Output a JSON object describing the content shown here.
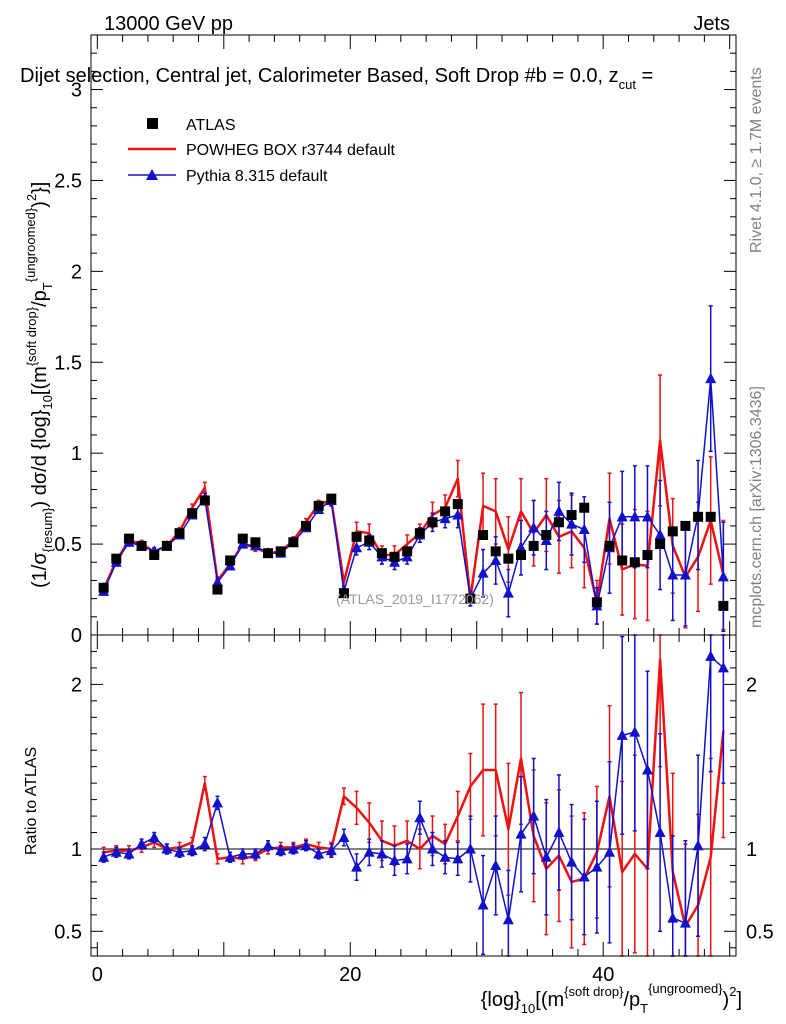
{
  "header": {
    "energy_label": "13000 GeV pp",
    "process_label": "Jets",
    "plot_title": "Dijet selection, Central jet, Calorimeter Based, Soft Drop #b = 0.0, z",
    "zcut_sub": "cut",
    "zcut_eq": " ="
  },
  "side_labels": {
    "rivet": "Rivet 4.1.0, ≥ 1.7M events",
    "mcplots": "mcplots.cern.ch [arXiv:1306.3436]"
  },
  "watermark": "(ATLAS_2019_I1772062)",
  "axes": {
    "ylabel_main": {
      "p1": "(1/σ",
      "sub1": "{resum}",
      "p2": ") dσ/d {log}",
      "sub2": "10",
      "p3": "[(m",
      "sup1": "{soft drop}",
      "p4": "/p",
      "sub3": "T",
      "sup2": "{ungroomed}",
      "p5": ")",
      "sup3": "2",
      "p6": "}]"
    },
    "ylabel_ratio": "Ratio to ATLAS",
    "xlabel": {
      "p1": "{log}",
      "sub1": "10",
      "p2": "[(m",
      "sup1": "{soft drop}",
      "p3": "/p",
      "sub2": "T",
      "sup2": "{ungroomed}",
      "p4": ")",
      "sup3": "2",
      "p5": "]"
    }
  },
  "legend": {
    "atlas": "ATLAS",
    "powheg": "POWHEG BOX r3744 default",
    "pythia": "Pythia 8.315 default"
  },
  "colors": {
    "data": "#000000",
    "powheg": "#ee1111",
    "pythia": "#1111cc",
    "reference": "#000000"
  },
  "chart_data": [
    {
      "type": "scatter",
      "name": "main",
      "xlim": [
        -0.5,
        50.5
      ],
      "ylim": [
        0,
        3.3
      ],
      "x_ticks": [
        0,
        20,
        40
      ],
      "y_ticks": [
        0,
        0.5,
        1,
        1.5,
        2,
        2.5,
        3
      ],
      "y_tick_labels": [
        "0",
        "0.5",
        "1",
        "1.5",
        "2",
        "2.5",
        "3"
      ],
      "x": [
        0.5,
        1.5,
        2.5,
        3.5,
        4.5,
        5.5,
        6.5,
        7.5,
        8.5,
        9.5,
        10.5,
        11.5,
        12.5,
        13.5,
        14.5,
        15.5,
        16.5,
        17.5,
        18.5,
        19.5,
        20.5,
        21.5,
        22.5,
        23.5,
        24.5,
        25.5,
        26.5,
        27.5,
        28.5,
        29.5,
        30.5,
        31.5,
        32.5,
        33.5,
        34.5,
        35.5,
        36.5,
        37.5,
        38.5,
        39.5,
        40.5,
        41.5,
        42.5,
        43.5,
        44.5,
        45.5,
        46.5,
        47.5,
        48.5,
        49.5
      ],
      "series": [
        {
          "name": "ATLAS",
          "values": [
            0.26,
            0.42,
            0.53,
            0.49,
            0.44,
            0.49,
            0.56,
            0.67,
            0.74,
            0.25,
            0.41,
            0.53,
            0.51,
            0.45,
            0.46,
            0.51,
            0.6,
            0.71,
            0.75,
            0.23,
            0.54,
            0.52,
            0.45,
            0.43,
            0.46,
            0.56,
            0.62,
            0.68,
            0.72,
            0.2,
            0.55,
            0.46,
            0.42,
            0.44,
            0.49,
            0.55,
            0.62,
            0.66,
            0.7,
            0.18,
            0.49,
            0.41,
            0.4,
            0.44,
            0.5,
            0.57,
            0.6,
            0.65,
            0.65,
            0.16
          ]
        },
        {
          "name": "POWHEG BOX r3744 default",
          "values": [
            0.25,
            0.41,
            0.52,
            0.5,
            0.46,
            0.49,
            0.57,
            0.7,
            0.81,
            0.3,
            0.39,
            0.5,
            0.48,
            0.45,
            0.46,
            0.52,
            0.62,
            0.72,
            0.74,
            0.29,
            0.57,
            0.56,
            0.44,
            0.44,
            0.5,
            0.56,
            0.66,
            0.7,
            0.86,
            0.2,
            0.71,
            0.68,
            0.47,
            0.68,
            0.56,
            0.66,
            0.54,
            0.57,
            0.48,
            0.18,
            0.64,
            0.36,
            0.39,
            0.38,
            1.07,
            0.49,
            0.32,
            0.43,
            0.63,
            0.33
          ],
          "err": [
            0.02,
            0.02,
            0.02,
            0.02,
            0.02,
            0.02,
            0.02,
            0.02,
            0.03,
            0.02,
            0.02,
            0.02,
            0.02,
            0.02,
            0.02,
            0.02,
            0.02,
            0.02,
            0.03,
            0.03,
            0.05,
            0.05,
            0.05,
            0.05,
            0.05,
            0.05,
            0.07,
            0.07,
            0.1,
            0.04,
            0.18,
            0.18,
            0.18,
            0.18,
            0.18,
            0.2,
            0.2,
            0.2,
            0.22,
            0.12,
            0.25,
            0.25,
            0.3,
            0.3,
            0.36,
            0.26,
            0.28,
            0.3,
            0.35,
            0.3
          ]
        },
        {
          "name": "Pythia 8.315 default",
          "values": [
            0.24,
            0.4,
            0.51,
            0.49,
            0.46,
            0.49,
            0.55,
            0.66,
            0.75,
            0.29,
            0.38,
            0.5,
            0.49,
            0.45,
            0.45,
            0.51,
            0.59,
            0.69,
            0.74,
            0.24,
            0.48,
            0.51,
            0.43,
            0.4,
            0.43,
            0.55,
            0.62,
            0.64,
            0.66,
            0.2,
            0.34,
            0.41,
            0.23,
            0.48,
            0.59,
            0.52,
            0.68,
            0.61,
            0.58,
            0.16,
            0.48,
            0.65,
            0.65,
            0.65,
            0.55,
            0.33,
            0.33,
            0.66,
            1.41,
            0.32
          ],
          "err": [
            0.02,
            0.02,
            0.02,
            0.02,
            0.02,
            0.02,
            0.02,
            0.02,
            0.03,
            0.02,
            0.02,
            0.02,
            0.02,
            0.02,
            0.02,
            0.02,
            0.02,
            0.02,
            0.03,
            0.03,
            0.04,
            0.04,
            0.04,
            0.04,
            0.04,
            0.04,
            0.05,
            0.05,
            0.07,
            0.04,
            0.13,
            0.13,
            0.13,
            0.15,
            0.15,
            0.16,
            0.16,
            0.17,
            0.18,
            0.1,
            0.25,
            0.25,
            0.28,
            0.28,
            0.3,
            0.25,
            0.28,
            0.3,
            0.4,
            0.3
          ]
        }
      ]
    },
    {
      "type": "scatter",
      "name": "ratio",
      "xlim": [
        -0.5,
        50.5
      ],
      "ylim": [
        0.35,
        2.3
      ],
      "x_ticks": [
        0,
        20,
        40
      ],
      "x_tick_labels": [
        "0",
        "20",
        "40"
      ],
      "y_ticks": [
        0.5,
        1,
        2
      ],
      "y_tick_labels": [
        "0.5",
        "1",
        "2"
      ],
      "reference_line": 1,
      "x": [
        0.5,
        1.5,
        2.5,
        3.5,
        4.5,
        5.5,
        6.5,
        7.5,
        8.5,
        9.5,
        10.5,
        11.5,
        12.5,
        13.5,
        14.5,
        15.5,
        16.5,
        17.5,
        18.5,
        19.5,
        20.5,
        21.5,
        22.5,
        23.5,
        24.5,
        25.5,
        26.5,
        27.5,
        28.5,
        29.5,
        30.5,
        31.5,
        32.5,
        33.5,
        34.5,
        35.5,
        36.5,
        37.5,
        38.5,
        39.5,
        40.5,
        41.5,
        42.5,
        43.5,
        44.5,
        45.5,
        46.5,
        47.5,
        48.5,
        49.5
      ],
      "series": [
        {
          "name": "POWHEG BOX r3744 default",
          "values": [
            0.98,
            0.99,
            0.99,
            1.01,
            1.04,
            1.0,
            1.01,
            1.04,
            1.4,
            0.94,
            0.95,
            0.94,
            0.96,
            1.0,
            1.01,
            1.01,
            1.03,
            1.01,
            1.0,
            1.32,
            1.25,
            1.16,
            1.05,
            1.02,
            1.05,
            1.0,
            1.08,
            1.03,
            1.2,
            1.38,
            1.48,
            1.48,
            1.12,
            1.55,
            1.08,
            0.88,
            0.96,
            0.8,
            0.82,
            0.98,
            1.32,
            0.86,
            0.97,
            0.88,
            2.15,
            0.86,
            0.53,
            0.66,
            0.95,
            1.72
          ],
          "err": [
            0.03,
            0.03,
            0.03,
            0.03,
            0.03,
            0.03,
            0.03,
            0.03,
            0.04,
            0.03,
            0.03,
            0.03,
            0.03,
            0.03,
            0.03,
            0.03,
            0.03,
            0.03,
            0.04,
            0.05,
            0.1,
            0.12,
            0.12,
            0.12,
            0.12,
            0.12,
            0.12,
            0.12,
            0.15,
            0.2,
            0.4,
            0.4,
            0.4,
            0.4,
            0.4,
            0.4,
            0.4,
            0.4,
            0.4,
            0.4,
            0.55,
            0.55,
            0.6,
            0.6,
            0.65,
            0.6,
            0.5,
            0.55,
            0.6,
            0.65
          ]
        },
        {
          "name": "Pythia 8.315 default",
          "values": [
            0.95,
            0.98,
            0.97,
            1.03,
            1.07,
            1.0,
            0.98,
            0.99,
            1.03,
            1.28,
            0.95,
            0.97,
            0.97,
            1.02,
            0.99,
            1.0,
            1.02,
            0.97,
            0.99,
            1.07,
            0.89,
            0.98,
            0.97,
            0.93,
            0.94,
            1.19,
            1.0,
            0.95,
            0.94,
            1.0,
            0.66,
            0.9,
            0.57,
            1.09,
            1.2,
            0.95,
            1.1,
            0.92,
            0.83,
            0.89,
            0.98,
            1.69,
            1.71,
            1.48,
            1.1,
            0.58,
            0.55,
            1.02,
            2.17,
            2.1
          ],
          "err": [
            0.03,
            0.03,
            0.03,
            0.03,
            0.03,
            0.03,
            0.03,
            0.03,
            0.04,
            0.04,
            0.03,
            0.03,
            0.03,
            0.03,
            0.03,
            0.03,
            0.03,
            0.03,
            0.04,
            0.05,
            0.08,
            0.08,
            0.08,
            0.09,
            0.09,
            0.1,
            0.1,
            0.1,
            0.1,
            0.2,
            0.3,
            0.3,
            0.3,
            0.35,
            0.35,
            0.35,
            0.35,
            0.35,
            0.35,
            0.4,
            0.55,
            0.6,
            0.6,
            0.6,
            0.6,
            0.5,
            0.5,
            0.55,
            0.7,
            0.7
          ]
        }
      ]
    }
  ]
}
